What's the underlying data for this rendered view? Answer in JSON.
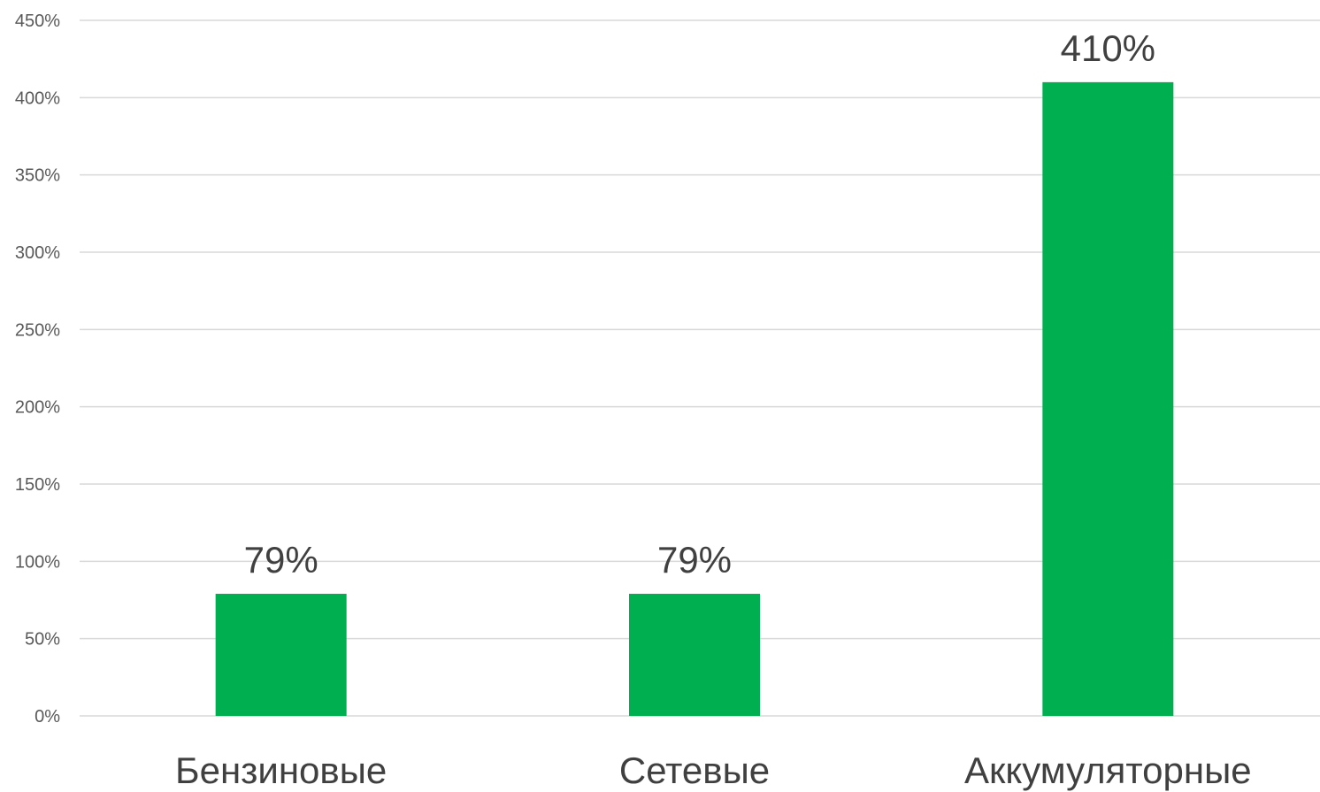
{
  "chart_data": {
    "type": "bar",
    "categories": [
      "Бензиновые",
      "Сетевые",
      "Аккумуляторные"
    ],
    "values": [
      79,
      79,
      410
    ],
    "data_labels": [
      "79%",
      "79%",
      "410%"
    ],
    "ylim": [
      0,
      450
    ],
    "yticks": [
      0,
      50,
      100,
      150,
      200,
      250,
      300,
      350,
      400,
      450
    ],
    "ytick_labels": [
      "0%",
      "50%",
      "100%",
      "150%",
      "200%",
      "250%",
      "300%",
      "350%",
      "400%",
      "450%"
    ],
    "grid": true,
    "legend": "none",
    "bar_color": "#00b050"
  }
}
